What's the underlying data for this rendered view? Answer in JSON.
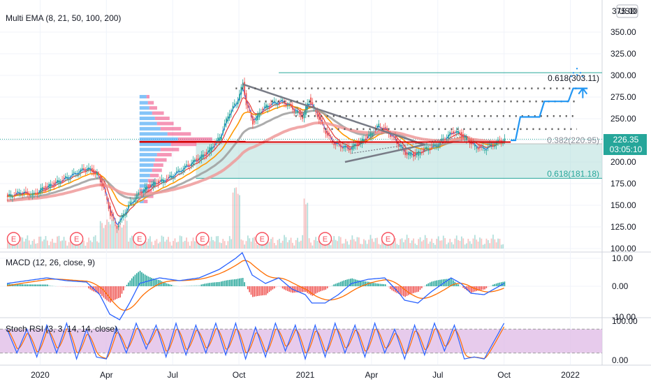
{
  "chart_data": {
    "type": "candlestick",
    "currency_label": "USD",
    "xlabels": [
      "2020",
      "Apr",
      "Jul",
      "Oct",
      "2021",
      "Apr",
      "Jul",
      "Oct",
      "2022"
    ],
    "price_axis": {
      "ticks": [
        "350.00",
        "325.00",
        "300.00",
        "275.00",
        "250.00",
        "225.00",
        "200.00",
        "175.00",
        "150.00",
        "125.00",
        "100.00"
      ],
      "top_clipped": "375.00",
      "range": [
        100,
        375
      ]
    },
    "price_indicator": {
      "title": "Multi EMA (8, 21, 50, 100, 200)",
      "periods": [
        8,
        21,
        50,
        100,
        200
      ],
      "colors": [
        "#2962ff",
        "#e53935",
        "#ff9800",
        "#9e9e9e",
        "#ef9a9a"
      ]
    },
    "last_price": {
      "value": "226.35",
      "countdown": "03:05:10",
      "color": "#26a69a"
    },
    "fib_levels": [
      {
        "label": "0.618(303.11)",
        "value": 303.11,
        "color": "#26a69a"
      },
      {
        "label": "0.382(220.95)",
        "value": 220.95,
        "color": "#bdbdbd"
      },
      {
        "label": "0.618(181.18)",
        "value": 181.18,
        "color": "#26a69a"
      }
    ],
    "earnings_marker": "E",
    "earnings_count": 7,
    "resistance_levels": [
      285,
      270,
      253,
      238
    ],
    "support_level": 223,
    "projection_path": [
      [
        0.0,
        225
      ],
      [
        0.05,
        225
      ],
      [
        0.1,
        252
      ],
      [
        0.3,
        252
      ],
      [
        0.35,
        270
      ],
      [
        0.6,
        270
      ],
      [
        0.65,
        285
      ],
      [
        0.8,
        285
      ]
    ],
    "macd": {
      "title": "MACD (12, 26, close, 9)",
      "ticks": [
        "10.00",
        "0.00"
      ],
      "bottom_clipped": "-10.00",
      "range": [
        -12,
        12
      ]
    },
    "stoch_rsi": {
      "title": "Stoch RSI (3, 3, 14, 14, close)",
      "ticks": [
        "100.00",
        "0.00"
      ],
      "upper_band": 80,
      "lower_band": 20
    },
    "price_series": [
      [
        0,
        160
      ],
      [
        0.2,
        165
      ],
      [
        0.4,
        162
      ],
      [
        0.5,
        168
      ],
      [
        0.7,
        175
      ],
      [
        0.9,
        182
      ],
      [
        1.05,
        188
      ],
      [
        1.2,
        193
      ],
      [
        1.35,
        186
      ],
      [
        1.45,
        170
      ],
      [
        1.55,
        140
      ],
      [
        1.65,
        125
      ],
      [
        1.75,
        140
      ],
      [
        1.85,
        152
      ],
      [
        2.0,
        165
      ],
      [
        2.2,
        175
      ],
      [
        2.4,
        180
      ],
      [
        2.6,
        190
      ],
      [
        2.8,
        200
      ],
      [
        3.0,
        210
      ],
      [
        3.2,
        228
      ],
      [
        3.35,
        258
      ],
      [
        3.45,
        268
      ],
      [
        3.55,
        290
      ],
      [
        3.6,
        268
      ],
      [
        3.7,
        245
      ],
      [
        3.85,
        262
      ],
      [
        4.0,
        268
      ],
      [
        4.15,
        270
      ],
      [
        4.3,
        262
      ],
      [
        4.45,
        252
      ],
      [
        4.55,
        272
      ],
      [
        4.65,
        258
      ],
      [
        4.75,
        242
      ],
      [
        4.85,
        228
      ],
      [
        4.95,
        220
      ],
      [
        5.05,
        218
      ],
      [
        5.15,
        215
      ],
      [
        5.3,
        222
      ],
      [
        5.45,
        230
      ],
      [
        5.6,
        242
      ],
      [
        5.72,
        236
      ],
      [
        5.85,
        225
      ],
      [
        6.0,
        210
      ],
      [
        6.15,
        208
      ],
      [
        6.3,
        215
      ],
      [
        6.45,
        218
      ],
      [
        6.6,
        228
      ],
      [
        6.75,
        236
      ],
      [
        6.9,
        228
      ],
      [
        7.05,
        218
      ],
      [
        7.2,
        215
      ],
      [
        7.35,
        221
      ],
      [
        7.5,
        226
      ]
    ],
    "macd_series": [
      [
        0,
        1
      ],
      [
        0.3,
        2
      ],
      [
        0.6,
        3
      ],
      [
        0.9,
        2
      ],
      [
        1.2,
        1.5
      ],
      [
        1.4,
        -3
      ],
      [
        1.55,
        -10
      ],
      [
        1.7,
        -12
      ],
      [
        1.85,
        -6
      ],
      [
        2.0,
        1
      ],
      [
        2.3,
        3
      ],
      [
        2.6,
        2
      ],
      [
        2.9,
        3
      ],
      [
        3.2,
        6
      ],
      [
        3.45,
        10
      ],
      [
        3.55,
        12
      ],
      [
        3.7,
        4
      ],
      [
        3.9,
        1
      ],
      [
        4.1,
        3
      ],
      [
        4.3,
        -1
      ],
      [
        4.5,
        -3
      ],
      [
        4.6,
        -6
      ],
      [
        4.8,
        -6
      ],
      [
        5.0,
        -3
      ],
      [
        5.2,
        1
      ],
      [
        5.45,
        2.5
      ],
      [
        5.7,
        3
      ],
      [
        5.9,
        -2
      ],
      [
        6.0,
        -5
      ],
      [
        6.2,
        -6
      ],
      [
        6.4,
        -2
      ],
      [
        6.7,
        3
      ],
      [
        6.85,
        1
      ],
      [
        7.0,
        -2.5
      ],
      [
        7.2,
        -3
      ],
      [
        7.5,
        1
      ]
    ],
    "stoch_series": [
      [
        0,
        80
      ],
      [
        0.15,
        20
      ],
      [
        0.3,
        80
      ],
      [
        0.45,
        10
      ],
      [
        0.6,
        90
      ],
      [
        0.75,
        20
      ],
      [
        0.9,
        95
      ],
      [
        1.05,
        5
      ],
      [
        1.2,
        80
      ],
      [
        1.35,
        10
      ],
      [
        1.5,
        5
      ],
      [
        1.65,
        85
      ],
      [
        1.8,
        20
      ],
      [
        1.95,
        95
      ],
      [
        2.1,
        30
      ],
      [
        2.25,
        90
      ],
      [
        2.4,
        10
      ],
      [
        2.55,
        95
      ],
      [
        2.7,
        15
      ],
      [
        2.85,
        90
      ],
      [
        3.0,
        20
      ],
      [
        3.15,
        95
      ],
      [
        3.3,
        15
      ],
      [
        3.45,
        95
      ],
      [
        3.6,
        5
      ],
      [
        3.75,
        85
      ],
      [
        3.9,
        10
      ],
      [
        4.05,
        95
      ],
      [
        4.2,
        25
      ],
      [
        4.35,
        90
      ],
      [
        4.5,
        5
      ],
      [
        4.65,
        90
      ],
      [
        4.8,
        10
      ],
      [
        4.95,
        95
      ],
      [
        5.1,
        20
      ],
      [
        5.25,
        90
      ],
      [
        5.4,
        10
      ],
      [
        5.55,
        95
      ],
      [
        5.7,
        20
      ],
      [
        5.85,
        80
      ],
      [
        6.0,
        5
      ],
      [
        6.15,
        90
      ],
      [
        6.3,
        15
      ],
      [
        6.45,
        95
      ],
      [
        6.6,
        25
      ],
      [
        6.75,
        90
      ],
      [
        6.9,
        5
      ],
      [
        7.05,
        10
      ],
      [
        7.2,
        5
      ],
      [
        7.35,
        50
      ],
      [
        7.5,
        95
      ]
    ]
  }
}
